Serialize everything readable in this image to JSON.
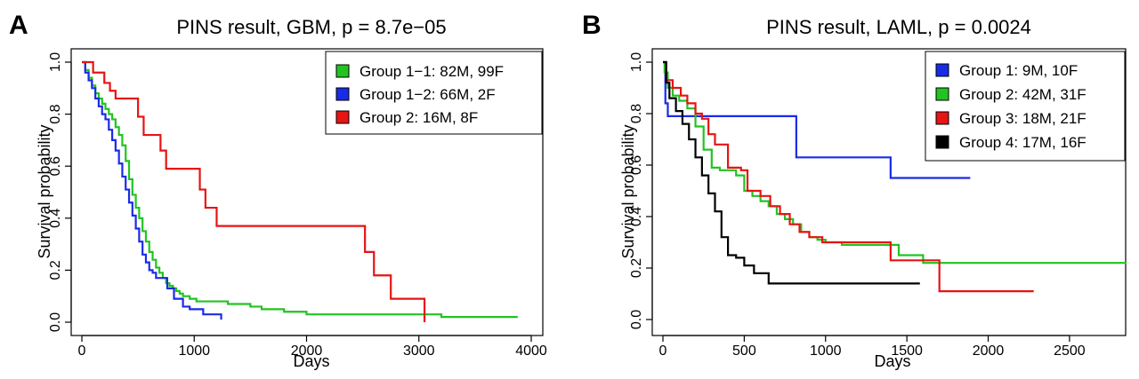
{
  "chart_data": [
    {
      "panel": "A",
      "type": "line",
      "title": "PINS result, GBM, p = 8.7e−05",
      "xlabel": "Days",
      "ylabel": "Survival probability",
      "xlim": [
        0,
        4000
      ],
      "ylim": [
        0,
        1
      ],
      "xticks": [
        "0",
        "1000",
        "2000",
        "3000",
        "4000"
      ],
      "yticks": [
        "0.0",
        "0.2",
        "0.4",
        "0.6",
        "0.8",
        "1.0"
      ],
      "legend_position": "top-right",
      "series": [
        {
          "name": "Group 1−1: 82M, 99F",
          "color": "#22c322",
          "x": [
            0,
            30,
            60,
            90,
            120,
            150,
            180,
            210,
            240,
            270,
            300,
            330,
            360,
            390,
            420,
            450,
            480,
            510,
            540,
            570,
            600,
            630,
            660,
            690,
            720,
            750,
            780,
            810,
            840,
            870,
            900,
            960,
            1020,
            1100,
            1200,
            1300,
            1400,
            1500,
            1600,
            1700,
            1800,
            2000,
            2200,
            2400,
            2800,
            3200,
            3600,
            3880
          ],
          "y": [
            1.0,
            0.97,
            0.94,
            0.91,
            0.88,
            0.86,
            0.84,
            0.82,
            0.8,
            0.78,
            0.75,
            0.72,
            0.68,
            0.62,
            0.55,
            0.49,
            0.44,
            0.4,
            0.35,
            0.31,
            0.27,
            0.24,
            0.21,
            0.19,
            0.17,
            0.15,
            0.14,
            0.13,
            0.12,
            0.11,
            0.1,
            0.09,
            0.08,
            0.08,
            0.08,
            0.07,
            0.07,
            0.06,
            0.05,
            0.05,
            0.04,
            0.03,
            0.03,
            0.03,
            0.03,
            0.02,
            0.02,
            0.02
          ]
        },
        {
          "name": "Group 1−2: 66M, 2F",
          "color": "#1a2be6",
          "x": [
            0,
            30,
            60,
            90,
            120,
            150,
            180,
            210,
            240,
            270,
            300,
            330,
            360,
            390,
            420,
            450,
            480,
            510,
            540,
            570,
            600,
            630,
            660,
            700,
            760,
            820,
            900,
            960,
            1080,
            1240
          ],
          "y": [
            1.0,
            0.96,
            0.93,
            0.9,
            0.86,
            0.83,
            0.8,
            0.78,
            0.74,
            0.7,
            0.66,
            0.61,
            0.56,
            0.51,
            0.46,
            0.41,
            0.36,
            0.31,
            0.26,
            0.23,
            0.2,
            0.19,
            0.17,
            0.17,
            0.13,
            0.09,
            0.06,
            0.05,
            0.03,
            0.01
          ]
        },
        {
          "name": "Group 2: 16M, 8F",
          "color": "#e61414",
          "x": [
            0,
            100,
            200,
            250,
            300,
            350,
            400,
            500,
            550,
            700,
            750,
            1050,
            1100,
            1200,
            2000,
            2520,
            2600,
            2750,
            3050
          ],
          "y": [
            1.0,
            0.96,
            0.92,
            0.89,
            0.86,
            0.86,
            0.86,
            0.79,
            0.72,
            0.66,
            0.59,
            0.51,
            0.44,
            0.37,
            0.37,
            0.27,
            0.18,
            0.09,
            0.0
          ]
        }
      ]
    },
    {
      "panel": "B",
      "type": "line",
      "title": "PINS result, LAML, p = 0.0024",
      "xlabel": "Days",
      "ylabel": "Survival probability",
      "xlim": [
        0,
        2900
      ],
      "ylim": [
        0,
        1
      ],
      "xticks": [
        "0",
        "500",
        "1000",
        "1500",
        "2000",
        "2500"
      ],
      "yticks": [
        "0.0",
        "0.2",
        "0.4",
        "0.6",
        "0.8",
        "1.0"
      ],
      "legend_position": "top-right",
      "series": [
        {
          "name": "Group 1: 9M, 10F",
          "color": "#1a2be6",
          "x": [
            0,
            15,
            30,
            790,
            820,
            1390,
            1400,
            1890
          ],
          "y": [
            1.0,
            0.84,
            0.79,
            0.79,
            0.63,
            0.63,
            0.55,
            0.55
          ],
          "step": true
        },
        {
          "name": "Group 2: 42M, 31F",
          "color": "#22c322",
          "x": [
            0,
            10,
            30,
            60,
            100,
            150,
            200,
            250,
            300,
            350,
            400,
            450,
            500,
            550,
            600,
            650,
            700,
            750,
            800,
            850,
            900,
            950,
            1000,
            1100,
            1400,
            1450,
            1600,
            2850
          ],
          "y": [
            1.0,
            0.96,
            0.9,
            0.87,
            0.85,
            0.82,
            0.75,
            0.66,
            0.59,
            0.58,
            0.58,
            0.56,
            0.5,
            0.48,
            0.46,
            0.44,
            0.41,
            0.39,
            0.37,
            0.34,
            0.32,
            0.31,
            0.3,
            0.29,
            0.29,
            0.25,
            0.22,
            0.22
          ],
          "step": true
        },
        {
          "name": "Group 3: 18M, 21F",
          "color": "#e61414",
          "x": [
            0,
            20,
            60,
            110,
            150,
            200,
            240,
            280,
            320,
            400,
            480,
            520,
            600,
            660,
            720,
            780,
            840,
            900,
            980,
            1100,
            1400,
            1700,
            2280
          ],
          "y": [
            1.0,
            0.93,
            0.9,
            0.87,
            0.84,
            0.8,
            0.78,
            0.72,
            0.68,
            0.59,
            0.58,
            0.5,
            0.48,
            0.44,
            0.41,
            0.37,
            0.34,
            0.32,
            0.3,
            0.3,
            0.23,
            0.11,
            0.11
          ],
          "step": true
        },
        {
          "name": "Group 4: 17M, 16F",
          "color": "#000000",
          "x": [
            0,
            20,
            40,
            80,
            120,
            160,
            200,
            240,
            280,
            320,
            360,
            400,
            450,
            500,
            560,
            650,
            1580
          ],
          "y": [
            1.0,
            0.92,
            0.86,
            0.81,
            0.76,
            0.7,
            0.63,
            0.56,
            0.49,
            0.42,
            0.32,
            0.25,
            0.24,
            0.21,
            0.18,
            0.14,
            0.14
          ],
          "step": true
        }
      ]
    }
  ]
}
